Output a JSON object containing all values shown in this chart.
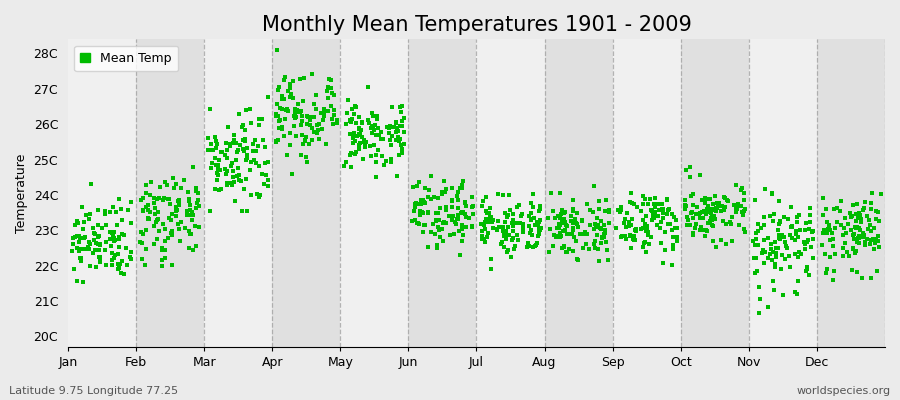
{
  "title": "Monthly Mean Temperatures 1901 - 2009",
  "ylabel": "Temperature",
  "month_labels": [
    "Jan",
    "Feb",
    "Mar",
    "Apr",
    "May",
    "Jun",
    "Jul",
    "Aug",
    "Sep",
    "Oct",
    "Nov",
    "Dec"
  ],
  "ytick_labels": [
    "20C",
    "21C",
    "22C",
    "23C",
    "24C",
    "25C",
    "26C",
    "27C",
    "28C"
  ],
  "ytick_values": [
    20,
    21,
    22,
    23,
    24,
    25,
    26,
    27,
    28
  ],
  "ylim": [
    19.7,
    28.4
  ],
  "dot_color": "#00BB00",
  "background_color": "#EBEBEB",
  "plot_bg_color": "#F0F0F0",
  "alt_band_color": "#E0E0E0",
  "legend_label": "Mean Temp",
  "footer_left": "Latitude 9.75 Longitude 77.25",
  "footer_right": "worldspecies.org",
  "title_fontsize": 15,
  "axis_fontsize": 9,
  "footer_fontsize": 8,
  "n_years": 109,
  "month_means": [
    22.7,
    23.4,
    25.1,
    26.2,
    25.7,
    23.5,
    23.1,
    23.1,
    23.3,
    23.5,
    22.5,
    22.8
  ],
  "month_stds": [
    0.55,
    0.6,
    0.65,
    0.6,
    0.55,
    0.45,
    0.4,
    0.4,
    0.42,
    0.45,
    0.6,
    0.55
  ],
  "random_seed": 42,
  "dashed_color": "#999999",
  "dashed_lw": 0.9
}
